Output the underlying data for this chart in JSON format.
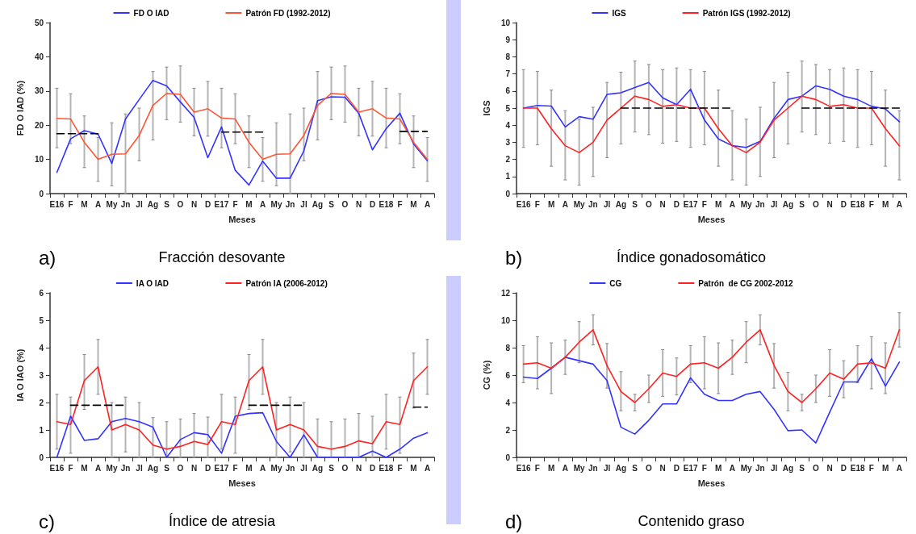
{
  "chart_data": [
    {
      "type": "line",
      "title": "Fracción desovante",
      "annotations": [
        "a)"
      ],
      "xlabel": "Meses",
      "ylabel": "FD O IAD (%)",
      "categories": [
        "E16",
        "F",
        "M",
        "A",
        "My",
        "Jn",
        "Jl",
        "Ag",
        "S",
        "O",
        "N",
        "D",
        "E17",
        "F",
        "M",
        "A",
        "My",
        "Jn",
        "Jl",
        "Ag",
        "S",
        "O",
        "N",
        "D",
        "E18",
        "F",
        "M",
        "A"
      ],
      "ylim": [
        0,
        50
      ],
      "yticks": [
        0,
        10,
        20,
        30,
        40,
        50
      ],
      "legend": "top",
      "marker": "none",
      "series": [
        {
          "name": "FD O IAD",
          "color": "#3333ff",
          "values": [
            6.2,
            16,
            18.4,
            17.4,
            8.8,
            21.8,
            27.5,
            33.1,
            31.5,
            26.8,
            22.3,
            10.5,
            19.5,
            6.8,
            2.5,
            9.5,
            4.5,
            4.5,
            12.5,
            27.2,
            28.3,
            28.2,
            23.5,
            12.8,
            19,
            23.5,
            14.5,
            9.6
          ]
        },
        {
          "name": "Patrón FD (1992-2012)",
          "color": "#ff5533",
          "values": [
            22,
            21.8,
            15,
            10,
            11.5,
            11.6,
            17,
            25.8,
            29.3,
            29,
            23.8,
            24.8,
            22.1,
            21.8,
            15,
            10,
            11.5,
            11.6,
            17,
            25.8,
            29.3,
            29,
            23.8,
            24.8,
            22.1,
            21.8,
            15,
            10
          ],
          "errors": [
            [
              13.4,
              30.8
            ],
            [
              14.6,
              29.2
            ],
            [
              7.6,
              22.7
            ],
            [
              3.6,
              16.4
            ],
            [
              2.3,
              20.7
            ],
            [
              0,
              23.3
            ],
            [
              9.6,
              25
            ],
            [
              15.7,
              35.7
            ],
            [
              21.6,
              37
            ],
            [
              20.9,
              37.3
            ],
            [
              16.9,
              30.8
            ],
            [
              16.8,
              32.8
            ],
            [
              13.4,
              30.8
            ],
            [
              14.6,
              29.2
            ],
            [
              7.6,
              22.7
            ],
            [
              3.6,
              16.4
            ],
            [
              2.3,
              20.7
            ],
            [
              0,
              23.3
            ],
            [
              9.6,
              25
            ],
            [
              15.7,
              35.7
            ],
            [
              21.6,
              37
            ],
            [
              20.9,
              37.3
            ],
            [
              16.9,
              30.8
            ],
            [
              16.8,
              32.8
            ],
            [
              13.4,
              30.8
            ],
            [
              14.6,
              29.2
            ],
            [
              7.6,
              22.7
            ],
            [
              3.6,
              16.4
            ]
          ]
        },
        {
          "color": "#000000",
          "line_style": "dashed",
          "values": [
            17.5,
            17.5,
            17.5,
            17.5,
            null,
            null,
            null,
            null,
            null,
            null,
            null,
            null,
            18,
            18,
            18,
            18,
            null,
            null,
            null,
            null,
            null,
            null,
            null,
            null,
            null,
            18.2,
            18.2,
            18.2
          ]
        }
      ]
    },
    {
      "type": "line",
      "title": "Índice gonadosomático",
      "annotations": [
        "b)"
      ],
      "xlabel": "Meses",
      "ylabel": "IGS",
      "categories": [
        "E16",
        "F",
        "M",
        "A",
        "My",
        "Jn",
        "Jl",
        "Ag",
        "S",
        "O",
        "N",
        "D",
        "E17",
        "F",
        "M",
        "A",
        "My",
        "Jn",
        "Jl",
        "Ag",
        "S",
        "O",
        "N",
        "D",
        "E18",
        "F",
        "M",
        "A"
      ],
      "ylim": [
        0,
        10
      ],
      "yticks": [
        0,
        1,
        2,
        3,
        4,
        5,
        6,
        7,
        8,
        9,
        10
      ],
      "legend": "top",
      "marker": "none",
      "series": [
        {
          "name": "IGS",
          "color": "#3333ff",
          "values": [
            5,
            5.15,
            5.12,
            3.9,
            4.5,
            4.35,
            5.8,
            5.9,
            6.2,
            6.5,
            5.6,
            5.2,
            6.1,
            4.3,
            3.2,
            2.8,
            2.7,
            3.05,
            4.4,
            5.5,
            5.7,
            6.3,
            6.1,
            5.7,
            5.5,
            5.1,
            4.95,
            4.2
          ]
        },
        {
          "name": "Patrón IGS (1992-2012)",
          "color": "#ff2222",
          "values": [
            5,
            5,
            3.8,
            2.8,
            2.4,
            3,
            4.3,
            5,
            5.7,
            5.5,
            5.1,
            5.2,
            5,
            5,
            3.8,
            2.8,
            2.4,
            3,
            4.3,
            5,
            5.7,
            5.5,
            5.1,
            5.2,
            5,
            5,
            3.8,
            2.8
          ],
          "errors": [
            [
              2.7,
              7.25
            ],
            [
              2.85,
              7.15
            ],
            [
              1.6,
              6.05
            ],
            [
              0.8,
              4.85
            ],
            [
              0.5,
              4.35
            ],
            [
              1,
              5.05
            ],
            [
              2.1,
              6.5
            ],
            [
              2.9,
              7.1
            ],
            [
              3.6,
              7.75
            ],
            [
              3.45,
              7.55
            ],
            [
              2.95,
              7.25
            ],
            [
              3.05,
              7.35
            ],
            [
              2.7,
              7.25
            ],
            [
              2.85,
              7.15
            ],
            [
              1.6,
              6.05
            ],
            [
              0.8,
              4.85
            ],
            [
              0.5,
              4.35
            ],
            [
              1,
              5.05
            ],
            [
              2.1,
              6.5
            ],
            [
              2.9,
              7.1
            ],
            [
              3.6,
              7.75
            ],
            [
              3.45,
              7.55
            ],
            [
              2.95,
              7.25
            ],
            [
              3.05,
              7.35
            ],
            [
              2.7,
              7.25
            ],
            [
              2.85,
              7.15
            ],
            [
              1.6,
              6.05
            ],
            [
              0.8,
              4.85
            ]
          ]
        },
        {
          "color": "#000000",
          "line_style": "dashed",
          "values": [
            null,
            null,
            null,
            null,
            null,
            null,
            null,
            5,
            5,
            5,
            5,
            5,
            5,
            5,
            5,
            5,
            null,
            null,
            null,
            null,
            5,
            5,
            5,
            5,
            5,
            5,
            5,
            5
          ]
        }
      ]
    },
    {
      "type": "line",
      "title": "Índice de atresia",
      "annotations": [
        "c)"
      ],
      "xlabel": "Meses",
      "ylabel": "IA O IAO (%)",
      "categories": [
        "E16",
        "F",
        "M",
        "A",
        "My",
        "Jn",
        "Jl",
        "Ag",
        "S",
        "O",
        "N",
        "D",
        "E17",
        "F",
        "M",
        "A",
        "My",
        "Jn",
        "Jl",
        "Ag",
        "S",
        "O",
        "N",
        "D",
        "E18",
        "F",
        "M",
        "A"
      ],
      "ylim": [
        0,
        6
      ],
      "yticks": [
        0,
        1,
        2,
        3,
        4,
        5,
        6
      ],
      "legend": "top",
      "marker": "none",
      "series": [
        {
          "name": "IA O IAD",
          "color": "#3333ff",
          "values": [
            0,
            1.5,
            0.62,
            0.68,
            1.3,
            1.42,
            1.3,
            1.1,
            0,
            0.65,
            0.9,
            0.83,
            0.15,
            1.5,
            1.6,
            1.63,
            0.58,
            0,
            0.82,
            0,
            0,
            0,
            0,
            0.23,
            0,
            0.3,
            0.7,
            0.9
          ]
        },
        {
          "name": "Patrón IA (2006-2012)",
          "color": "#ff2222",
          "values": [
            1.3,
            1.2,
            2.8,
            3.3,
            1,
            1.2,
            1,
            0.45,
            0.3,
            0.4,
            0.58,
            0.47,
            1.3,
            1.2,
            2.8,
            3.3,
            1,
            1.2,
            1,
            0.4,
            0.3,
            0.4,
            0.6,
            0.5,
            1.3,
            1.2,
            2.8,
            3.3
          ],
          "errors": [
            [
              0.3,
              2.3
            ],
            [
              0.15,
              2.2
            ],
            [
              1.75,
              3.75
            ],
            [
              2.3,
              4.3
            ],
            [
              0,
              2
            ],
            [
              0.2,
              2.2
            ],
            [
              0,
              2
            ],
            [
              0,
              1.45
            ],
            [
              0,
              1.3
            ],
            [
              0,
              1.4
            ],
            [
              0,
              1.6
            ],
            [
              0,
              1.47
            ],
            [
              0.3,
              2.3
            ],
            [
              0.15,
              2.2
            ],
            [
              1.75,
              3.75
            ],
            [
              2.3,
              4.3
            ],
            [
              0,
              2
            ],
            [
              0.2,
              2.2
            ],
            [
              0,
              2
            ],
            [
              0,
              1.4
            ],
            [
              0,
              1.3
            ],
            [
              0,
              1.4
            ],
            [
              0,
              1.6
            ],
            [
              0,
              1.5
            ],
            [
              0.3,
              2.3
            ],
            [
              0.15,
              2.2
            ],
            [
              1.8,
              3.8
            ],
            [
              2.3,
              4.3
            ]
          ]
        },
        {
          "color": "#000000",
          "line_style": "dashed",
          "values": [
            null,
            1.9,
            1.9,
            1.9,
            1.9,
            1.9,
            null,
            null,
            null,
            null,
            null,
            null,
            null,
            null,
            1.9,
            1.9,
            1.9,
            1.9,
            1.9,
            null,
            null,
            null,
            null,
            null,
            null,
            null,
            1.83,
            1.83
          ]
        }
      ]
    },
    {
      "type": "line",
      "title": "Contenido graso",
      "annotations": [
        "d)"
      ],
      "xlabel": "Meses",
      "ylabel": "CG (%)",
      "categories": [
        "E16",
        "F",
        "M",
        "A",
        "My",
        "Jn",
        "Jl",
        "Ag",
        "S",
        "O",
        "N",
        "D",
        "E17",
        "F",
        "M",
        "A",
        "My",
        "Jn",
        "Jl",
        "Ag",
        "S",
        "O",
        "N",
        "D",
        "E18",
        "F",
        "M",
        "A"
      ],
      "ylim": [
        0,
        12
      ],
      "yticks": [
        0,
        2,
        4,
        6,
        8,
        10,
        12
      ],
      "legend": "top",
      "marker": "none",
      "series": [
        {
          "name": "CG",
          "color": "#3333ff",
          "values": [
            5.85,
            5.75,
            6.5,
            7.3,
            7.05,
            6.8,
            5.6,
            2.2,
            1.7,
            2.7,
            3.9,
            3.9,
            5.8,
            4.6,
            4.15,
            4.15,
            4.6,
            4.8,
            3.5,
            1.95,
            2,
            1.05,
            3.3,
            5.5,
            5.5,
            7.2,
            5.2,
            6.95
          ]
        },
        {
          "name": "Patrón  de CG 2002-2012",
          "color": "#ff2222",
          "values": [
            6.8,
            6.9,
            6.5,
            7.3,
            8.4,
            9.3,
            6.7,
            4.8,
            4,
            5,
            6.15,
            5.9,
            6.8,
            6.9,
            6.5,
            7.3,
            8.4,
            9.3,
            6.7,
            4.8,
            4,
            5,
            6.15,
            5.7,
            6.8,
            6.9,
            6.5,
            9.3
          ],
          "errors": [
            [
              5.45,
              8.15
            ],
            [
              5,
              8.8
            ],
            [
              4.65,
              8.35
            ],
            [
              6.05,
              8.55
            ],
            [
              6.9,
              9.9
            ],
            [
              8.2,
              10.4
            ],
            [
              5.05,
              8.3
            ],
            [
              3.4,
              6.25
            ],
            [
              3.4,
              4.6
            ],
            [
              4,
              6
            ],
            [
              4.45,
              7.85
            ],
            [
              4.55,
              7.25
            ],
            [
              5.45,
              8.15
            ],
            [
              5,
              8.8
            ],
            [
              4.65,
              8.35
            ],
            [
              6.05,
              8.55
            ],
            [
              6.9,
              9.9
            ],
            [
              8.2,
              10.4
            ],
            [
              5.05,
              8.3
            ],
            [
              3.4,
              6.2
            ],
            [
              3.4,
              4.6
            ],
            [
              4,
              6
            ],
            [
              4.45,
              7.85
            ],
            [
              4.35,
              7.05
            ],
            [
              5.45,
              8.15
            ],
            [
              5,
              8.8
            ],
            [
              4.65,
              8.35
            ],
            [
              8.05,
              10.55
            ]
          ]
        }
      ]
    }
  ]
}
